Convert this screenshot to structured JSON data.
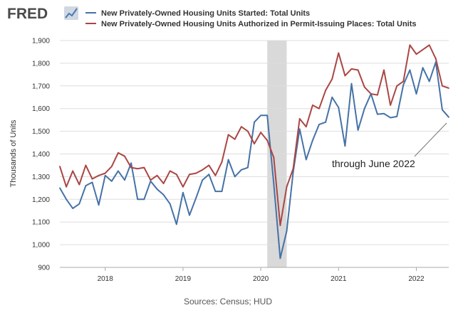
{
  "brand": {
    "logo_text": "FRED",
    "logo_mark": "fred-graph-icon"
  },
  "colors": {
    "starts": "#4572a7",
    "permits": "#aa4643",
    "recession": "#d9d9d9",
    "grid": "#dddddd"
  },
  "source_text": "Sources: Census; HUD",
  "annotation_text": "through June 2022",
  "chart_data": {
    "type": "line",
    "title": "",
    "xlabel": "",
    "ylabel": "Thousands of Units",
    "ylim": [
      900,
      1900
    ],
    "yticks": [
      900,
      1000,
      1100,
      1200,
      1300,
      1400,
      1500,
      1600,
      1700,
      1800,
      1900
    ],
    "ytick_labels": [
      "900",
      "1,000",
      "1,100",
      "1,200",
      "1,300",
      "1,400",
      "1,500",
      "1,600",
      "1,700",
      "1,800",
      "1,900"
    ],
    "xlim": [
      "2017-06",
      "2022-06"
    ],
    "xticks": [
      "2018-01",
      "2019-01",
      "2020-01",
      "2021-01",
      "2022-01"
    ],
    "xtick_labels": [
      "2018",
      "2019",
      "2020",
      "2021",
      "2022"
    ],
    "grid": "horizontal",
    "legend_position": "top",
    "shaded_periods": [
      {
        "start": "2020-02",
        "end": "2020-04"
      }
    ],
    "x": [
      "2017-06",
      "2017-07",
      "2017-08",
      "2017-09",
      "2017-10",
      "2017-11",
      "2017-12",
      "2018-01",
      "2018-02",
      "2018-03",
      "2018-04",
      "2018-05",
      "2018-06",
      "2018-07",
      "2018-08",
      "2018-09",
      "2018-10",
      "2018-11",
      "2018-12",
      "2019-01",
      "2019-02",
      "2019-03",
      "2019-04",
      "2019-05",
      "2019-06",
      "2019-07",
      "2019-08",
      "2019-09",
      "2019-10",
      "2019-11",
      "2019-12",
      "2020-01",
      "2020-02",
      "2020-03",
      "2020-04",
      "2020-05",
      "2020-06",
      "2020-07",
      "2020-08",
      "2020-09",
      "2020-10",
      "2020-11",
      "2020-12",
      "2021-01",
      "2021-02",
      "2021-03",
      "2021-04",
      "2021-05",
      "2021-06",
      "2021-07",
      "2021-08",
      "2021-09",
      "2021-10",
      "2021-11",
      "2021-12",
      "2022-01",
      "2022-02",
      "2022-03",
      "2022-04",
      "2022-05",
      "2022-06"
    ],
    "series": [
      {
        "name": "New Privately-Owned Housing Units Started: Total Units",
        "values": [
          1250,
          1200,
          1160,
          1180,
          1260,
          1275,
          1175,
          1305,
          1280,
          1325,
          1285,
          1360,
          1200,
          1200,
          1280,
          1245,
          1220,
          1180,
          1090,
          1230,
          1130,
          1205,
          1285,
          1310,
          1235,
          1235,
          1375,
          1300,
          1330,
          1340,
          1540,
          1570,
          1570,
          1270,
          940,
          1060,
          1320,
          1510,
          1375,
          1460,
          1530,
          1540,
          1650,
          1605,
          1435,
          1710,
          1505,
          1600,
          1665,
          1575,
          1578,
          1560,
          1565,
          1705,
          1770,
          1665,
          1780,
          1720,
          1805,
          1595,
          1562
        ]
      },
      {
        "name": "New Privately-Owned Housing Units Authorized in Permit-Issuing Places: Total Units",
        "values": [
          1345,
          1255,
          1325,
          1265,
          1350,
          1290,
          1305,
          1315,
          1345,
          1405,
          1390,
          1340,
          1335,
          1340,
          1285,
          1305,
          1270,
          1325,
          1310,
          1255,
          1310,
          1315,
          1330,
          1350,
          1305,
          1365,
          1485,
          1465,
          1520,
          1500,
          1445,
          1495,
          1460,
          1385,
          1085,
          1255,
          1335,
          1555,
          1520,
          1615,
          1600,
          1680,
          1730,
          1845,
          1745,
          1775,
          1770,
          1695,
          1665,
          1660,
          1770,
          1615,
          1700,
          1720,
          1880,
          1840,
          1860,
          1880,
          1820,
          1700,
          1690
        ]
      }
    ]
  }
}
